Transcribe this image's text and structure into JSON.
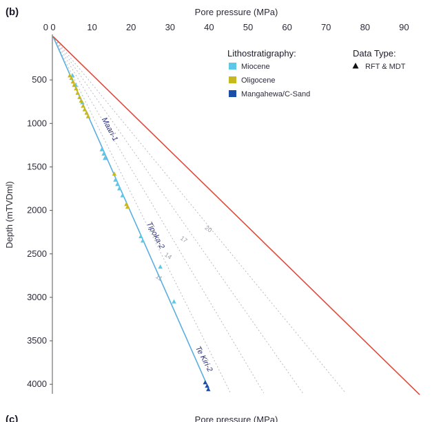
{
  "panel_label": "(b)",
  "bottom_panel_label": "(c)",
  "bottom_axis_title": "Pore pressure (MPa)",
  "legend": {
    "litho_title": "Lithostratigraphy:",
    "litho_items": [
      {
        "label": "Miocene",
        "color": "#5cc8e8"
      },
      {
        "label": "Oligocene",
        "color": "#c8b820"
      },
      {
        "label": "Mangahewa/C-Sand",
        "color": "#1a4fa8"
      }
    ],
    "data_type_title": "Data Type:",
    "data_type_items": [
      {
        "label": "RFT & MDT",
        "symbol": "triangle",
        "color": "#111111"
      }
    ]
  },
  "colors": {
    "hydrostatic": "#5aaee0",
    "lithostatic": "#e04a3a",
    "gradient_lines": "#b9b9c4"
  },
  "chart_data": {
    "type": "scatter",
    "title": "",
    "xlabel": "Pore pressure (MPa)",
    "ylabel": "Depth (mTVDml)",
    "x_axis_position": "top",
    "y_inverted": true,
    "xlim": [
      0,
      95
    ],
    "ylim": [
      0,
      4100
    ],
    "xticks": [
      0,
      10,
      20,
      30,
      40,
      50,
      60,
      70,
      80,
      90
    ],
    "yticks": [
      500,
      1000,
      1500,
      2000,
      2500,
      3000,
      3500,
      4000
    ],
    "grid": false,
    "legend_position": "top-right",
    "lines": [
      {
        "kind": "hydrostatic",
        "points": [
          [
            0,
            0
          ],
          [
            40,
            4060
          ]
        ]
      },
      {
        "kind": "lithostatic",
        "points": [
          [
            0,
            0
          ],
          [
            94,
            4120
          ]
        ]
      }
    ],
    "gradient_lines": [
      {
        "label": "11",
        "points": [
          [
            0,
            0
          ],
          [
            45.5,
            4100
          ]
        ]
      },
      {
        "label": "14",
        "points": [
          [
            0,
            0
          ],
          [
            54,
            4100
          ]
        ]
      },
      {
        "label": "17",
        "points": [
          [
            0,
            0
          ],
          [
            64,
            4100
          ]
        ]
      },
      {
        "label": "20",
        "points": [
          [
            0,
            0
          ],
          [
            75,
            4100
          ]
        ]
      }
    ],
    "well_labels": [
      {
        "text": "Maari-1",
        "x": 12.5,
        "y": 950
      },
      {
        "text": "Tipoka-2",
        "x": 24,
        "y": 2150
      },
      {
        "text": "Te Kiri-2",
        "x": 36.5,
        "y": 3580
      }
    ],
    "series": [
      {
        "name": "Miocene",
        "color": "#5cc8e8",
        "points": [
          [
            5.0,
            450
          ],
          [
            5.8,
            560
          ],
          [
            7.5,
            760
          ],
          [
            12.5,
            1300
          ],
          [
            13.0,
            1350
          ],
          [
            13.3,
            1400
          ],
          [
            16.0,
            1650
          ],
          [
            16.5,
            1700
          ],
          [
            17.0,
            1750
          ],
          [
            17.8,
            1830
          ],
          [
            22.5,
            2300
          ],
          [
            23.0,
            2350
          ],
          [
            27.5,
            2650
          ],
          [
            31.0,
            3050
          ]
        ]
      },
      {
        "name": "Oligocene",
        "color": "#c8b820",
        "points": [
          [
            4.3,
            450
          ],
          [
            4.7,
            480
          ],
          [
            5.1,
            520
          ],
          [
            5.4,
            560
          ],
          [
            5.9,
            600
          ],
          [
            6.3,
            650
          ],
          [
            6.8,
            700
          ],
          [
            7.2,
            740
          ],
          [
            7.7,
            800
          ],
          [
            8.1,
            840
          ],
          [
            8.6,
            880
          ],
          [
            9.0,
            920
          ],
          [
            15.7,
            1580
          ],
          [
            18.8,
            1930
          ],
          [
            19.1,
            1960
          ]
        ]
      },
      {
        "name": "Mangahewa/C-Sand",
        "color": "#1a4fa8",
        "points": [
          [
            39.0,
            3980
          ],
          [
            39.5,
            4020
          ],
          [
            39.8,
            4060
          ]
        ]
      }
    ]
  }
}
